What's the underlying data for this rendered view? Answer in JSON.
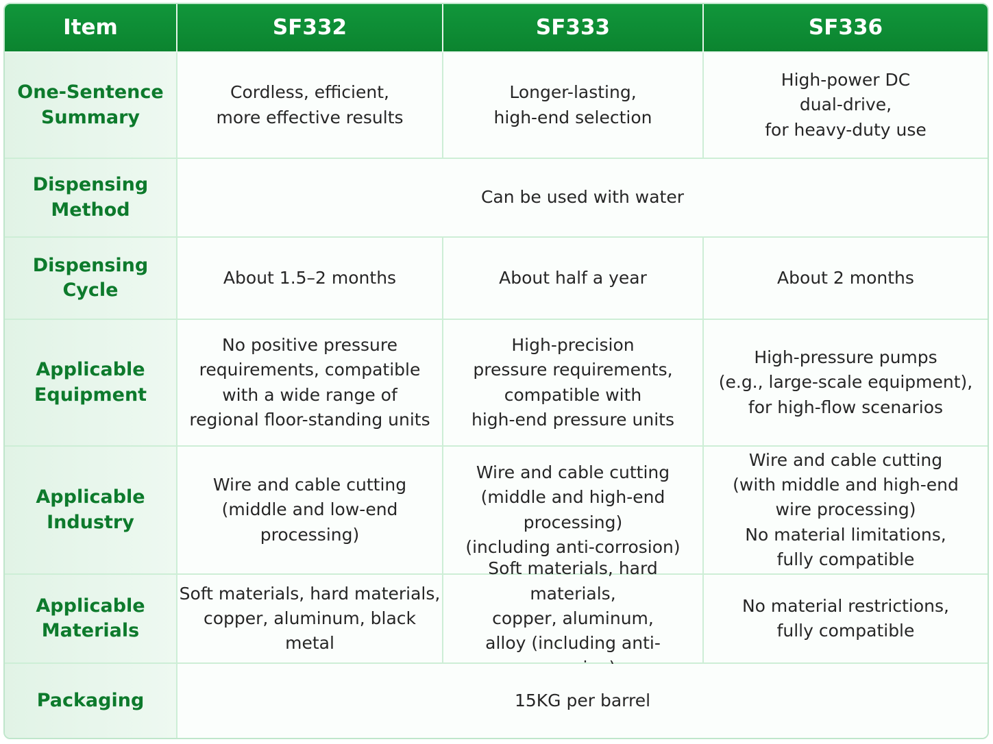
{
  "table": {
    "header": [
      "Item",
      "SF332",
      "SF333",
      "SF336"
    ],
    "rows": [
      {
        "label": "One-Sentence\nSummary",
        "cells": [
          "Cordless, efficient,\nmore effective results",
          "Longer-lasting,\nhigh-end selection",
          "High-power DC\ndual-drive,\nfor heavy-duty use"
        ]
      },
      {
        "label": "Dispensing\nMethod",
        "cells": [
          "Can be used with water"
        ]
      },
      {
        "label": "Dispensing\nCycle",
        "cells": [
          "About 1.5–2 months",
          "About half a year",
          "About 2 months"
        ]
      },
      {
        "label": "Applicable\nEquipment",
        "cells": [
          "No positive pressure\nrequirements, compatible\nwith a wide range of\nregional floor-standing units",
          "High-precision\npressure requirements,\ncompatible with\nhigh-end pressure units",
          "High-pressure pumps\n(e.g., large-scale equipment),\nfor high-flow scenarios"
        ]
      },
      {
        "label": "Applicable\nIndustry",
        "cells": [
          "Wire and cable cutting\n(middle and low-end processing)",
          "Wire and cable cutting\n(middle and high-end processing)\n(including anti-corrosion)",
          "Wire and cable cutting\n(with middle and high-end\nwire processing)\nNo material limitations,\nfully compatible"
        ]
      },
      {
        "label": "Applicable\nMaterials",
        "cells": [
          "Soft materials, hard materials,\ncopper, aluminum, black metal",
          "Soft materials, hard materials,\ncopper, aluminum,\nalloy (including anti-corrosion)",
          "No material restrictions,\nfully compatible"
        ]
      },
      {
        "label": "Packaging",
        "cells": [
          "15KG per barrel"
        ]
      }
    ]
  }
}
